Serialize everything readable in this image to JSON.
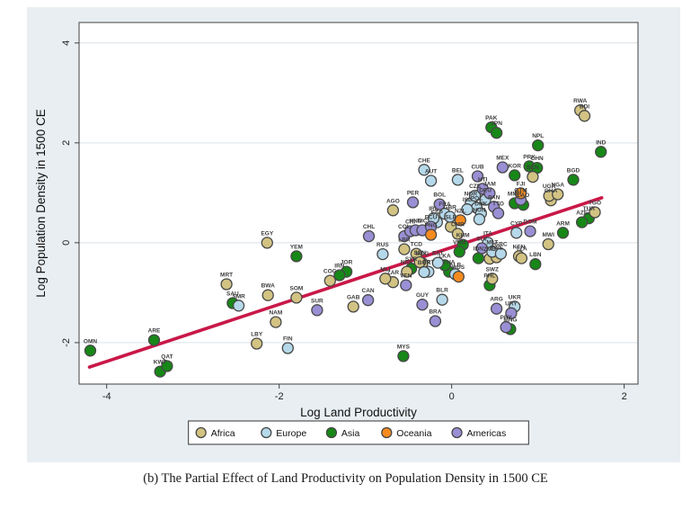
{
  "figure": {
    "caption": "(b) The Partial Effect of Land Productivity on Population Density in 1500 CE"
  },
  "chart_data": {
    "type": "scatter",
    "title": "",
    "xlabel": "Log Land Productivity",
    "ylabel": "Log Population Density in 1500 CE",
    "xlim": [
      -4.32,
      2.16
    ],
    "ylim": [
      -2.83,
      4.41
    ],
    "xticks": [
      "-4",
      "-2",
      "0",
      "2"
    ],
    "yticks": [
      "-2",
      "0",
      "2",
      "4"
    ],
    "grid": "horizontal",
    "legend_position": "bottom-center",
    "colors": {
      "panel_background": "#e8eef2",
      "plot_background": "#ffffff",
      "gridline": "#d9e2ea",
      "axis": "#404040",
      "marker_stroke": "#474747",
      "label_text": "#3d3d3d",
      "regression_line": "#c91848"
    },
    "regression_line": {
      "x1": -4.2,
      "y1": -2.49,
      "x2": 1.74,
      "y2": 0.9
    },
    "groups": [
      {
        "name": "Africa",
        "color": "#d2c383"
      },
      {
        "name": "Europe",
        "color": "#b5d9ea"
      },
      {
        "name": "Asia",
        "color": "#178717"
      },
      {
        "name": "Oceania",
        "color": "#f58b1f"
      },
      {
        "name": "Americas",
        "color": "#998fd4"
      }
    ],
    "points": [
      {
        "code": "OMN",
        "group": "Asia",
        "x": -4.19,
        "y": -2.16
      },
      {
        "code": "ARE",
        "group": "Asia",
        "x": -3.45,
        "y": -1.95
      },
      {
        "code": "KWT",
        "group": "Asia",
        "x": -3.38,
        "y": -2.58
      },
      {
        "code": "QAT",
        "group": "Asia",
        "x": -3.3,
        "y": -2.47
      },
      {
        "code": "SAU",
        "group": "Asia",
        "x": -2.54,
        "y": -1.21
      },
      {
        "code": "YEM",
        "group": "Asia",
        "x": -1.8,
        "y": -0.27
      },
      {
        "code": "JOR",
        "group": "Asia",
        "x": -1.22,
        "y": -0.58
      },
      {
        "code": "IRN",
        "group": "Asia",
        "x": -1.3,
        "y": -0.65
      },
      {
        "code": "MYS",
        "group": "Asia",
        "x": -0.56,
        "y": -2.27
      },
      {
        "code": "SYR",
        "group": "Asia",
        "x": -0.47,
        "y": -0.52
      },
      {
        "code": "KHM",
        "group": "Asia",
        "x": 0.13,
        "y": -0.04
      },
      {
        "code": "THA",
        "group": "Asia",
        "x": -0.03,
        "y": -0.58
      },
      {
        "code": "LKA",
        "group": "Asia",
        "x": -0.08,
        "y": -0.45
      },
      {
        "code": "VNM",
        "group": "Asia",
        "x": 0.09,
        "y": -0.18
      },
      {
        "code": "IDN",
        "group": "Asia",
        "x": 0.31,
        "y": -0.31
      },
      {
        "code": "PHL",
        "group": "Asia",
        "x": 0.44,
        "y": -0.85
      },
      {
        "code": "PAK",
        "group": "Asia",
        "x": 0.46,
        "y": 2.31
      },
      {
        "code": "JPN",
        "group": "Asia",
        "x": 0.52,
        "y": 2.2
      },
      {
        "code": "KOR",
        "group": "Asia",
        "x": 0.73,
        "y": 1.35
      },
      {
        "code": "PRK",
        "group": "Asia",
        "x": 0.9,
        "y": 1.53
      },
      {
        "code": "CHN",
        "group": "Asia",
        "x": 0.99,
        "y": 1.5
      },
      {
        "code": "NPL",
        "group": "Asia",
        "x": 1.0,
        "y": 1.95
      },
      {
        "code": "IND",
        "group": "Asia",
        "x": 1.73,
        "y": 1.82
      },
      {
        "code": "BGD",
        "group": "Asia",
        "x": 1.41,
        "y": 1.26
      },
      {
        "code": "MMR",
        "group": "Asia",
        "x": 0.73,
        "y": 0.79
      },
      {
        "code": "LAO",
        "group": "Asia",
        "x": 0.83,
        "y": 0.76
      },
      {
        "code": "TUR",
        "group": "Asia",
        "x": 1.59,
        "y": 0.49
      },
      {
        "code": "AZE",
        "group": "Asia",
        "x": 1.51,
        "y": 0.41
      },
      {
        "code": "ARM",
        "group": "Asia",
        "x": 1.29,
        "y": 0.2
      },
      {
        "code": "LBN",
        "group": "Asia",
        "x": 0.97,
        "y": -0.43
      },
      {
        "code": "MNG",
        "group": "Asia",
        "x": 0.68,
        "y": -1.73
      },
      {
        "code": "MRT",
        "group": "Africa",
        "x": -2.61,
        "y": -0.83
      },
      {
        "code": "EGY",
        "group": "Africa",
        "x": -2.14,
        "y": 0.0
      },
      {
        "code": "BWA",
        "group": "Africa",
        "x": -2.13,
        "y": -1.05
      },
      {
        "code": "SOM",
        "group": "Africa",
        "x": -1.8,
        "y": -1.1
      },
      {
        "code": "NAM",
        "group": "Africa",
        "x": -2.04,
        "y": -1.59
      },
      {
        "code": "LBY",
        "group": "Africa",
        "x": -2.26,
        "y": -2.02
      },
      {
        "code": "COG",
        "group": "Africa",
        "x": -1.41,
        "y": -0.76
      },
      {
        "code": "GAB",
        "group": "Africa",
        "x": -1.14,
        "y": -1.28
      },
      {
        "code": "AGO",
        "group": "Africa",
        "x": -0.68,
        "y": 0.65
      },
      {
        "code": "ZAR",
        "group": "Africa",
        "x": -0.68,
        "y": -0.79
      },
      {
        "code": "MLI",
        "group": "Africa",
        "x": -0.77,
        "y": -0.72
      },
      {
        "code": "LBR",
        "group": "Africa",
        "x": -0.55,
        "y": -0.13
      },
      {
        "code": "TCD",
        "group": "Africa",
        "x": -0.41,
        "y": -0.22
      },
      {
        "code": "NER",
        "group": "Africa",
        "x": -0.52,
        "y": -0.58
      },
      {
        "code": "MDG",
        "group": "Africa",
        "x": -0.34,
        "y": -0.41
      },
      {
        "code": "SEN",
        "group": "Africa",
        "x": -0.37,
        "y": -0.39
      },
      {
        "code": "SLE",
        "group": "Africa",
        "x": -0.01,
        "y": 0.32
      },
      {
        "code": "CMR",
        "group": "Africa",
        "x": 0.07,
        "y": 0.18
      },
      {
        "code": "ZMB",
        "group": "Africa",
        "x": 0.44,
        "y": -0.32
      },
      {
        "code": "ZWE",
        "group": "Africa",
        "x": 0.52,
        "y": -0.29
      },
      {
        "code": "KEN",
        "group": "Africa",
        "x": 0.78,
        "y": -0.27
      },
      {
        "code": "TZA",
        "group": "Africa",
        "x": 0.81,
        "y": -0.31
      },
      {
        "code": "SWZ",
        "group": "Africa",
        "x": 0.47,
        "y": -0.72
      },
      {
        "code": "MWI",
        "group": "Africa",
        "x": 1.12,
        "y": -0.03
      },
      {
        "code": "GHA",
        "group": "Africa",
        "x": 1.15,
        "y": 0.85
      },
      {
        "code": "UGA",
        "group": "Africa",
        "x": 1.13,
        "y": 0.94
      },
      {
        "code": "NGA",
        "group": "Africa",
        "x": 1.23,
        "y": 0.97
      },
      {
        "code": "BEN",
        "group": "Africa",
        "x": 0.94,
        "y": 1.32
      },
      {
        "code": "TGO",
        "group": "Africa",
        "x": 1.66,
        "y": 0.61
      },
      {
        "code": "RWA",
        "group": "Africa",
        "x": 1.49,
        "y": 2.65
      },
      {
        "code": "BDI",
        "group": "Africa",
        "x": 1.54,
        "y": 2.54
      },
      {
        "code": "SMR",
        "group": "Europe",
        "x": -2.47,
        "y": -1.26
      },
      {
        "code": "FIN",
        "group": "Europe",
        "x": -1.9,
        "y": -2.11
      },
      {
        "code": "RUS",
        "group": "Europe",
        "x": -0.8,
        "y": -0.23
      },
      {
        "code": "BLR",
        "group": "Europe",
        "x": -0.11,
        "y": -1.14
      },
      {
        "code": "CHE",
        "group": "Europe",
        "x": -0.32,
        "y": 1.46
      },
      {
        "code": "AUT",
        "group": "Europe",
        "x": -0.24,
        "y": 1.24
      },
      {
        "code": "BEL",
        "group": "Europe",
        "x": 0.07,
        "y": 1.26
      },
      {
        "code": "UKR",
        "group": "Europe",
        "x": 0.73,
        "y": -1.28
      },
      {
        "code": "EST",
        "group": "Europe",
        "x": -0.16,
        "y": -0.4
      },
      {
        "code": "PRT",
        "group": "Europe",
        "x": -0.27,
        "y": -0.58
      },
      {
        "code": "ALB",
        "group": "Europe",
        "x": 0.04,
        "y": -0.63
      },
      {
        "code": "BGR",
        "group": "Europe",
        "x": -0.32,
        "y": -0.59
      },
      {
        "code": "FRA",
        "group": "Europe",
        "x": -0.08,
        "y": 0.58
      },
      {
        "code": "GBR",
        "group": "Europe",
        "x": -0.02,
        "y": 0.52
      },
      {
        "code": "ESP",
        "group": "Europe",
        "x": -0.17,
        "y": 0.41
      },
      {
        "code": "IRL",
        "group": "Europe",
        "x": -0.21,
        "y": 0.49
      },
      {
        "code": "ITA",
        "group": "Europe",
        "x": 0.42,
        "y": 0.0
      },
      {
        "code": "MLT",
        "group": "Europe",
        "x": 0.47,
        "y": -0.18
      },
      {
        "code": "GRC",
        "group": "Europe",
        "x": 0.57,
        "y": -0.22
      },
      {
        "code": "CYP",
        "group": "Europe",
        "x": 0.75,
        "y": 0.2
      },
      {
        "code": "DEU",
        "group": "Europe",
        "x": 0.39,
        "y": 0.86
      },
      {
        "code": "NOR",
        "group": "Europe",
        "x": 0.22,
        "y": 0.79
      },
      {
        "code": "POL",
        "group": "Europe",
        "x": 0.29,
        "y": 0.7
      },
      {
        "code": "DNK",
        "group": "Europe",
        "x": 0.34,
        "y": 0.59
      },
      {
        "code": "CZE",
        "group": "Europe",
        "x": 0.27,
        "y": 0.94
      },
      {
        "code": "HUN",
        "group": "Europe",
        "x": 0.32,
        "y": 0.47
      },
      {
        "code": "ISL",
        "group": "Europe",
        "x": 0.18,
        "y": 0.67
      },
      {
        "code": "SUR",
        "group": "Americas",
        "x": -1.56,
        "y": -1.35
      },
      {
        "code": "CAN",
        "group": "Americas",
        "x": -0.97,
        "y": -1.15
      },
      {
        "code": "CHL",
        "group": "Americas",
        "x": -0.96,
        "y": 0.13
      },
      {
        "code": "GUY",
        "group": "Americas",
        "x": -0.34,
        "y": -1.24
      },
      {
        "code": "BRA",
        "group": "Americas",
        "x": -0.19,
        "y": -1.57
      },
      {
        "code": "VEN",
        "group": "Americas",
        "x": -0.53,
        "y": -0.85
      },
      {
        "code": "PER",
        "group": "Americas",
        "x": -0.45,
        "y": 0.81
      },
      {
        "code": "BOL",
        "group": "Americas",
        "x": -0.14,
        "y": 0.77
      },
      {
        "code": "COL",
        "group": "Americas",
        "x": -0.55,
        "y": 0.13
      },
      {
        "code": "CRI",
        "group": "Americas",
        "x": -0.48,
        "y": 0.23
      },
      {
        "code": "HND",
        "group": "Americas",
        "x": -0.42,
        "y": 0.25
      },
      {
        "code": "NIC",
        "group": "Americas",
        "x": -0.34,
        "y": 0.25
      },
      {
        "code": "ECU",
        "group": "Americas",
        "x": -0.24,
        "y": 0.32
      },
      {
        "code": "CUB",
        "group": "Americas",
        "x": 0.3,
        "y": 1.33
      },
      {
        "code": "MEX",
        "group": "Americas",
        "x": 0.59,
        "y": 1.51
      },
      {
        "code": "GTM",
        "group": "Americas",
        "x": 0.8,
        "y": 0.86
      },
      {
        "code": "SLV",
        "group": "Americas",
        "x": 0.35,
        "y": -0.11
      },
      {
        "code": "DOM",
        "group": "Americas",
        "x": 0.91,
        "y": 0.23
      },
      {
        "code": "HTI",
        "group": "Americas",
        "x": 0.36,
        "y": 1.08
      },
      {
        "code": "JAM",
        "group": "Americas",
        "x": 0.44,
        "y": 0.99
      },
      {
        "code": "PAN",
        "group": "Americas",
        "x": 0.49,
        "y": 0.72
      },
      {
        "code": "TTO",
        "group": "Americas",
        "x": 0.54,
        "y": 0.59
      },
      {
        "code": "ARG",
        "group": "Americas",
        "x": 0.52,
        "y": -1.32
      },
      {
        "code": "URY",
        "group": "Americas",
        "x": 0.69,
        "y": -1.41
      },
      {
        "code": "PRY",
        "group": "Americas",
        "x": 0.63,
        "y": -1.69
      },
      {
        "code": "NZL",
        "group": "Oceania",
        "x": 0.1,
        "y": 0.45
      },
      {
        "code": "AUS",
        "group": "Oceania",
        "x": 0.08,
        "y": -0.68
      },
      {
        "code": "PNG",
        "group": "Oceania",
        "x": -0.24,
        "y": 0.16
      },
      {
        "code": "FJI",
        "group": "Oceania",
        "x": 0.8,
        "y": 0.99
      }
    ]
  }
}
